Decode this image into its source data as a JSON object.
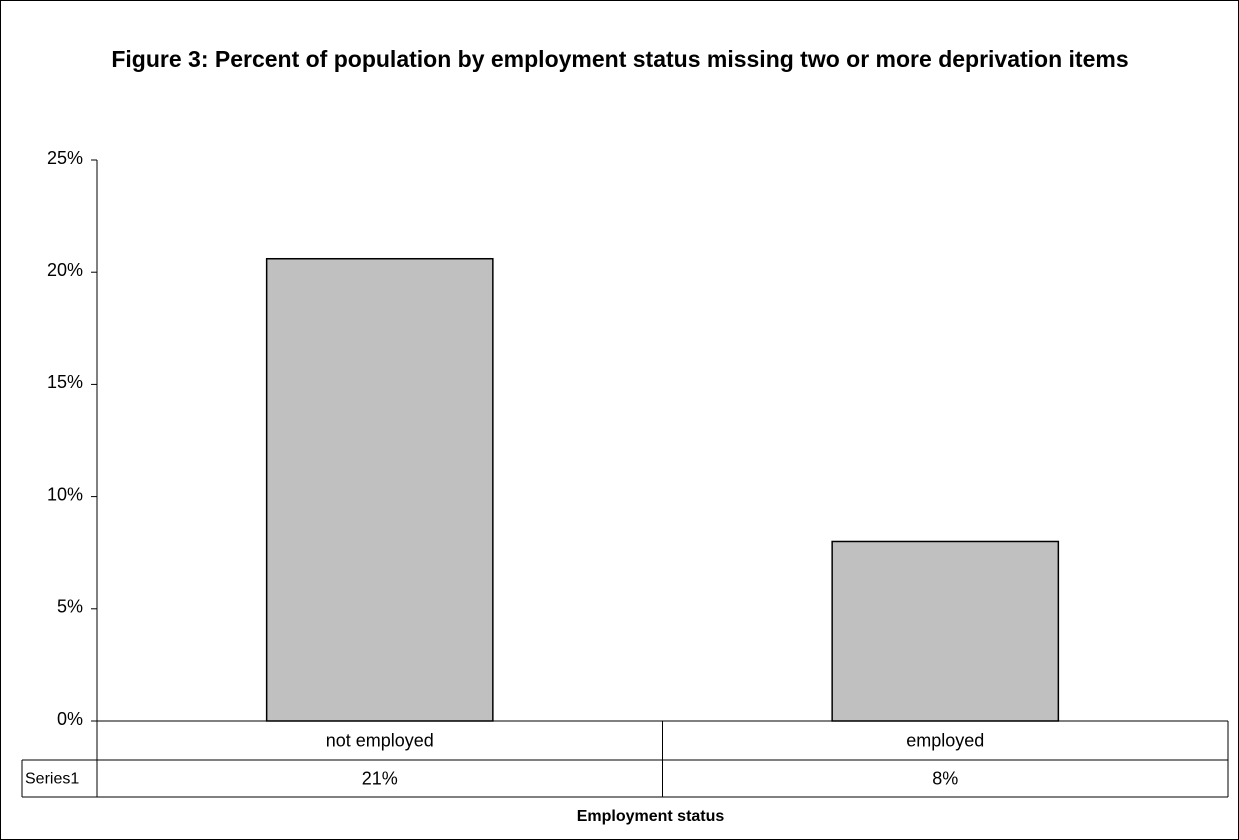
{
  "chart_data": {
    "type": "bar",
    "title": "Figure 3: Percent of population by employment status missing two or more deprivation items",
    "categories": [
      "not employed",
      "employed"
    ],
    "series": [
      {
        "name": "Series1",
        "values": [
          20.6,
          8.0
        ],
        "labels": [
          "21%",
          "8%"
        ]
      }
    ],
    "xlabel": "Employment status",
    "ylabel": "",
    "ylim": [
      0,
      25
    ],
    "yticks": [
      0,
      5,
      10,
      15,
      20,
      25
    ],
    "ytick_labels": [
      "0%",
      "5%",
      "10%",
      "15%",
      "20%",
      "25%"
    ],
    "data_table": true,
    "legend": "none",
    "grid": false,
    "bar_color": "#c0c0c0"
  }
}
